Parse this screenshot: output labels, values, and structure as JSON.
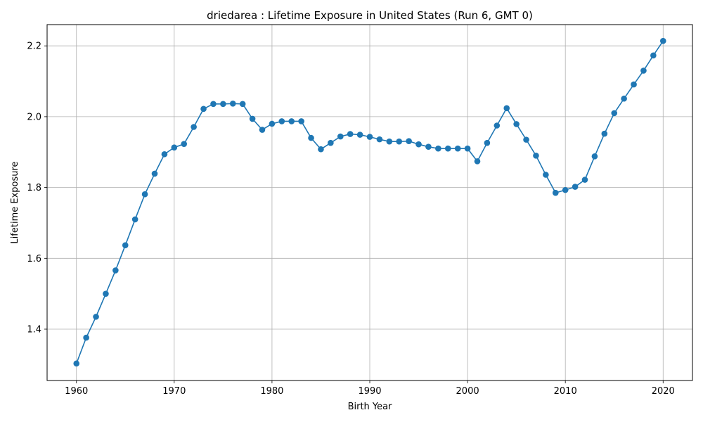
{
  "chart_data": {
    "type": "line",
    "title": "driedarea : Lifetime Exposure in United States (Run 6, GMT 0)",
    "xlabel": "Birth Year",
    "ylabel": "Lifetime Exposure",
    "xlim": [
      1957,
      2023
    ],
    "ylim": [
      1.255,
      2.26
    ],
    "xticks": [
      1960,
      1970,
      1980,
      1990,
      2000,
      2010,
      2020
    ],
    "yticks": [
      1.4,
      1.6,
      1.8,
      2.0,
      2.2
    ],
    "xtick_labels": [
      "1960",
      "1970",
      "1980",
      "1990",
      "2000",
      "2010",
      "2020"
    ],
    "ytick_labels": [
      "1.4",
      "1.6",
      "1.8",
      "2.0",
      "2.2"
    ],
    "grid": true,
    "line_color": "#1f77b4",
    "marker": "circle",
    "series": [
      {
        "name": "Lifetime Exposure",
        "x": [
          1960,
          1961,
          1962,
          1963,
          1964,
          1965,
          1966,
          1967,
          1968,
          1969,
          1970,
          1971,
          1972,
          1973,
          1974,
          1975,
          1976,
          1977,
          1978,
          1979,
          1980,
          1981,
          1982,
          1983,
          1984,
          1985,
          1986,
          1987,
          1988,
          1989,
          1990,
          1991,
          1992,
          1993,
          1994,
          1995,
          1996,
          1997,
          1998,
          1999,
          2000,
          2001,
          2002,
          2003,
          2004,
          2005,
          2006,
          2007,
          2008,
          2009,
          2010,
          2011,
          2012,
          2013,
          2014,
          2015,
          2016,
          2017,
          2018,
          2019,
          2020
        ],
        "values": [
          1.303,
          1.376,
          1.435,
          1.5,
          1.566,
          1.637,
          1.71,
          1.781,
          1.839,
          1.894,
          1.913,
          1.923,
          1.971,
          2.022,
          2.036,
          2.036,
          2.037,
          2.036,
          1.994,
          1.963,
          1.98,
          1.987,
          1.987,
          1.987,
          1.94,
          1.908,
          1.926,
          1.944,
          1.951,
          1.949,
          1.943,
          1.936,
          1.93,
          1.93,
          1.931,
          1.922,
          1.915,
          1.91,
          1.91,
          1.91,
          1.91,
          1.874,
          1.926,
          1.975,
          2.024,
          1.979,
          1.935,
          1.89,
          1.836,
          1.785,
          1.793,
          1.802,
          1.822,
          1.888,
          1.952,
          2.01,
          2.051,
          2.091,
          2.13,
          2.173,
          2.214
        ]
      }
    ]
  }
}
